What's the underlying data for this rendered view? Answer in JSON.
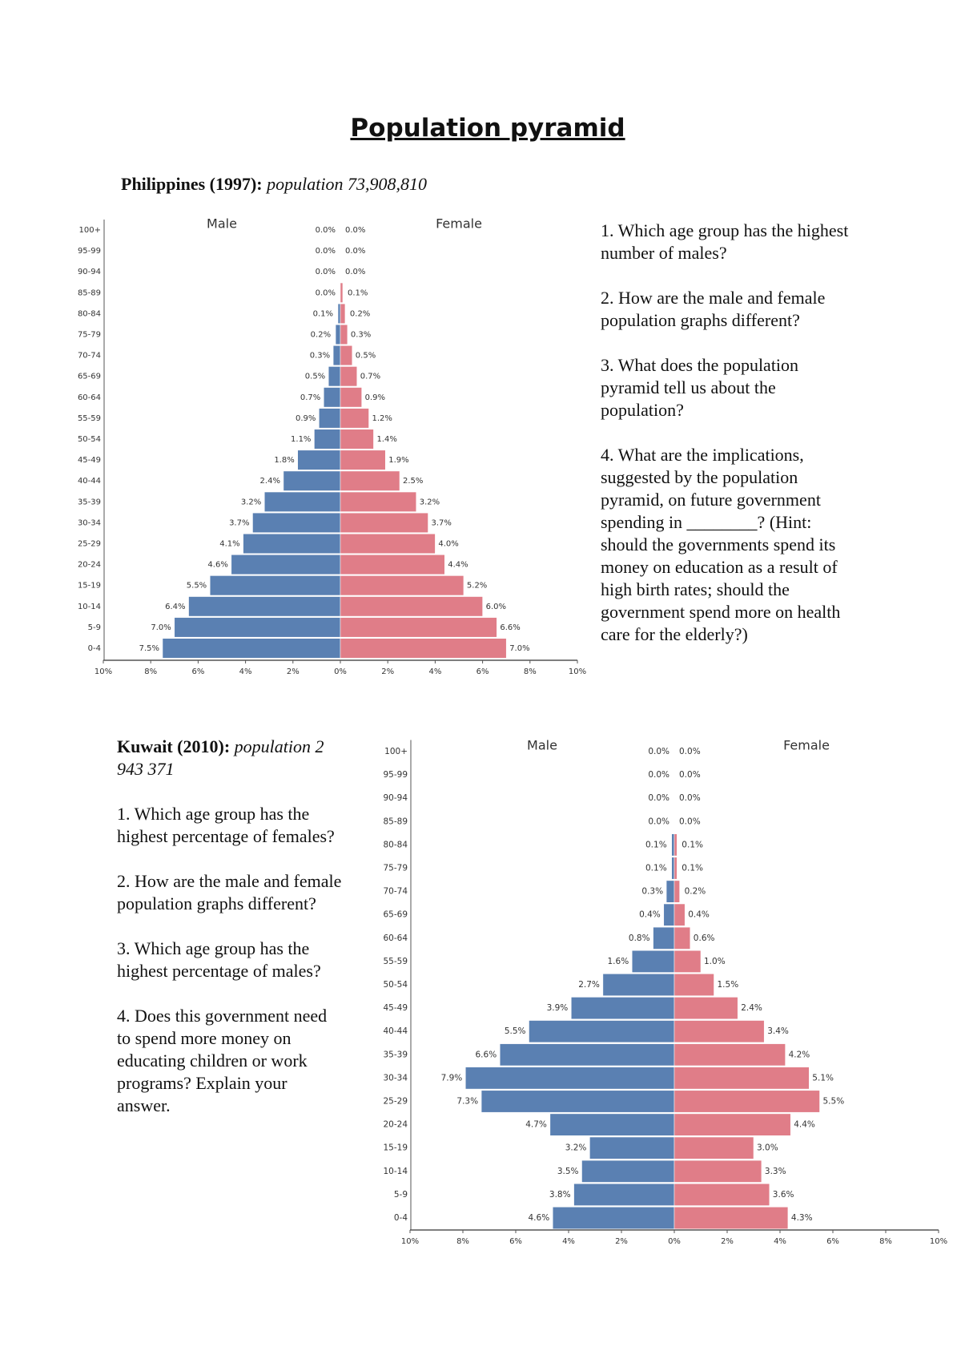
{
  "document": {
    "title": "Population pyramid",
    "sections": [
      {
        "heading": "Philippines (1997):",
        "subheading": "population 73,908,810",
        "questions": [
          "1. Which age group has the highest number of males?",
          "2. How are the male and female population graphs different?",
          "3. What does the population pyramid tell us about the population?",
          "4. What are the implications, suggested by the population pyramid, on future government spending in ________? (Hint: should the governments spend its money on education as a result of high birth rates; should the government spend more on health care for the elderly?)"
        ]
      },
      {
        "heading": "Kuwait (2010):",
        "subheading": "population 2 943 371",
        "questions": [
          "1. Which age group has the highest percentage of females?",
          "2. How are the male and female population graphs different?",
          "3. Which age group has the highest percentage of males?",
          "4. Does this government need to spend more money on educating children or work programs? Explain your answer."
        ]
      }
    ]
  },
  "chart_data": [
    {
      "type": "pyramid",
      "categories": [
        "100+",
        "95-99",
        "90-94",
        "85-89",
        "80-84",
        "75-79",
        "70-74",
        "65-69",
        "60-64",
        "55-59",
        "50-54",
        "45-49",
        "40-44",
        "35-39",
        "30-34",
        "25-29",
        "20-24",
        "15-19",
        "10-14",
        "5-9",
        "0-4"
      ],
      "series": [
        {
          "name": "Male",
          "color": "#5a80b2",
          "values": [
            0.0,
            0.0,
            0.0,
            0.0,
            0.1,
            0.2,
            0.3,
            0.5,
            0.7,
            0.9,
            1.1,
            1.8,
            2.4,
            3.2,
            3.7,
            4.1,
            4.6,
            5.5,
            6.4,
            7.0,
            7.5
          ],
          "value_labels": [
            "0.0%",
            "0.0%",
            "0.0%",
            "0.0%",
            "0.1%",
            "0.2%",
            "0.3%",
            "0.5%",
            "0.7%",
            "0.9%",
            "1.1%",
            "1.8%",
            "2.4%",
            "3.2%",
            "3.7%",
            "4.1%",
            "4.6%",
            "5.5%",
            "6.4%",
            "7.0%",
            "7.5%"
          ]
        },
        {
          "name": "Female",
          "color": "#e07d88",
          "values": [
            0.0,
            0.0,
            0.0,
            0.1,
            0.2,
            0.3,
            0.5,
            0.7,
            0.9,
            1.2,
            1.4,
            1.9,
            2.5,
            3.2,
            3.7,
            4.0,
            4.4,
            5.2,
            6.0,
            6.6,
            7.0
          ],
          "value_labels": [
            "0.0%",
            "0.0%",
            "0.0%",
            "0.1%",
            "0.2%",
            "0.3%",
            "0.5%",
            "0.7%",
            "0.9%",
            "1.2%",
            "1.4%",
            "1.9%",
            "2.5%",
            "3.2%",
            "3.7%",
            "4.0%",
            "4.4%",
            "5.2%",
            "6.0%",
            "6.6%",
            "7.0%"
          ]
        }
      ],
      "xlim": [
        -10,
        10
      ],
      "xticks": [
        {
          "value": -10,
          "label": "10%"
        },
        {
          "value": -8,
          "label": "8%"
        },
        {
          "value": -6,
          "label": "6%"
        },
        {
          "value": -4,
          "label": "4%"
        },
        {
          "value": -2,
          "label": "2%"
        },
        {
          "value": 0,
          "label": "0%"
        },
        {
          "value": 2,
          "label": "2%"
        },
        {
          "value": 4,
          "label": "4%"
        },
        {
          "value": 6,
          "label": "6%"
        },
        {
          "value": 8,
          "label": "8%"
        },
        {
          "value": 10,
          "label": "10%"
        }
      ]
    },
    {
      "type": "pyramid",
      "categories": [
        "100+",
        "95-99",
        "90-94",
        "85-89",
        "80-84",
        "75-79",
        "70-74",
        "65-69",
        "60-64",
        "55-59",
        "50-54",
        "45-49",
        "40-44",
        "35-39",
        "30-34",
        "25-29",
        "20-24",
        "15-19",
        "10-14",
        "5-9",
        "0-4"
      ],
      "series": [
        {
          "name": "Male",
          "color": "#5a80b2",
          "values": [
            0.0,
            0.0,
            0.0,
            0.0,
            0.1,
            0.1,
            0.3,
            0.4,
            0.8,
            1.6,
            2.7,
            3.9,
            5.5,
            6.6,
            7.9,
            7.3,
            4.7,
            3.2,
            3.5,
            3.8,
            4.6
          ],
          "value_labels": [
            "0.0%",
            "0.0%",
            "0.0%",
            "0.0%",
            "0.1%",
            "0.1%",
            "0.3%",
            "0.4%",
            "0.8%",
            "1.6%",
            "2.7%",
            "3.9%",
            "5.5%",
            "6.6%",
            "7.9%",
            "7.3%",
            "4.7%",
            "3.2%",
            "3.5%",
            "3.8%",
            "4.6%"
          ]
        },
        {
          "name": "Female",
          "color": "#e07d88",
          "values": [
            0.0,
            0.0,
            0.0,
            0.0,
            0.1,
            0.1,
            0.2,
            0.4,
            0.6,
            1.0,
            1.5,
            2.4,
            3.4,
            4.2,
            5.1,
            5.5,
            4.4,
            3.0,
            3.3,
            3.6,
            4.3
          ],
          "value_labels": [
            "0.0%",
            "0.0%",
            "0.0%",
            "0.0%",
            "0.1%",
            "0.1%",
            "0.2%",
            "0.4%",
            "0.6%",
            "1.0%",
            "1.5%",
            "2.4%",
            "3.4%",
            "4.2%",
            "5.1%",
            "5.5%",
            "4.4%",
            "3.0%",
            "3.3%",
            "3.6%",
            "4.3%"
          ]
        }
      ],
      "xlim": [
        -10,
        10
      ],
      "xticks": [
        {
          "value": -10,
          "label": "10%"
        },
        {
          "value": -8,
          "label": "8%"
        },
        {
          "value": -6,
          "label": "6%"
        },
        {
          "value": -4,
          "label": "4%"
        },
        {
          "value": -2,
          "label": "2%"
        },
        {
          "value": 0,
          "label": "0%"
        },
        {
          "value": 2,
          "label": "2%"
        },
        {
          "value": 4,
          "label": "4%"
        },
        {
          "value": 6,
          "label": "6%"
        },
        {
          "value": 8,
          "label": "8%"
        },
        {
          "value": 10,
          "label": "10%"
        }
      ]
    }
  ]
}
